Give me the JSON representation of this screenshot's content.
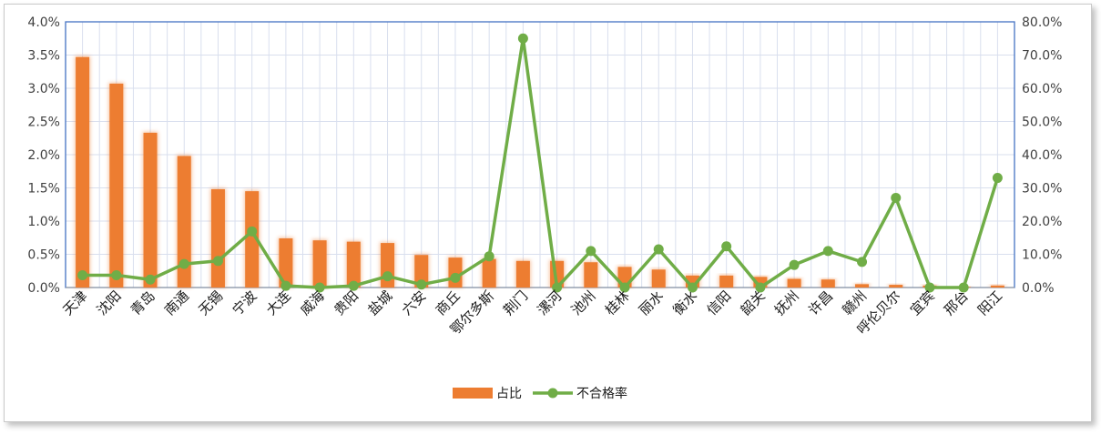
{
  "chart_data": {
    "type": "bar+line",
    "categories": [
      "天津",
      "沈阳",
      "青岛",
      "南通",
      "无锡",
      "宁波",
      "大连",
      "威海",
      "贵阳",
      "盐城",
      "六安",
      "商丘",
      "鄂尔多斯",
      "荆门",
      "漯河",
      "池州",
      "桂林",
      "丽水",
      "衡水",
      "信阳",
      "韶关",
      "抚州",
      "许昌",
      "赣州",
      "呼伦贝尔",
      "宜宾",
      "邢台",
      "阳江"
    ],
    "series": [
      {
        "name": "占比",
        "type": "bar",
        "axis": "left",
        "color": "#ed7d31",
        "values": [
          3.47,
          3.07,
          2.33,
          1.98,
          1.48,
          1.45,
          0.74,
          0.71,
          0.69,
          0.67,
          0.49,
          0.45,
          0.43,
          0.4,
          0.4,
          0.38,
          0.31,
          0.27,
          0.18,
          0.18,
          0.16,
          0.13,
          0.12,
          0.05,
          0.04,
          0.03,
          0.01,
          0.03
        ]
      },
      {
        "name": "不合格率",
        "type": "line",
        "axis": "right",
        "color": "#70ad47",
        "values": [
          3.7,
          3.7,
          2.4,
          7.1,
          8.0,
          16.9,
          0.5,
          0.0,
          0.5,
          3.4,
          0.9,
          2.9,
          9.4,
          75.0,
          0.0,
          11.0,
          0.0,
          11.5,
          0.0,
          12.4,
          0.0,
          6.8,
          11.0,
          7.7,
          27.0,
          0.0,
          0.0,
          33.0
        ]
      }
    ],
    "y_left": {
      "ticks": [
        "0.0%",
        "0.5%",
        "1.0%",
        "1.5%",
        "2.0%",
        "2.5%",
        "3.0%",
        "3.5%",
        "4.0%"
      ],
      "lim": [
        0,
        4
      ]
    },
    "y_right": {
      "ticks": [
        "0.0%",
        "10.0%",
        "20.0%",
        "30.0%",
        "40.0%",
        "50.0%",
        "60.0%",
        "70.0%",
        "80.0%"
      ],
      "lim": [
        0,
        80
      ]
    },
    "grid": true,
    "legend": "bottom"
  }
}
